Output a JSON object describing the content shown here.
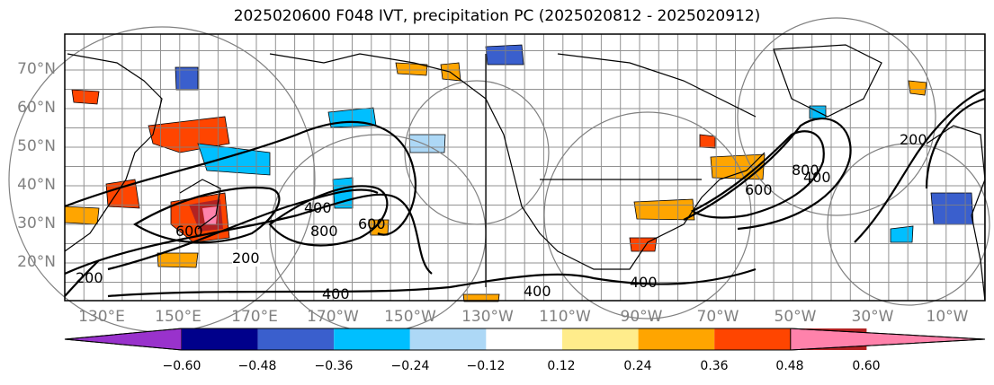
{
  "title": "2025020600 F048 IVT, precipitation PC (2025020812 - 2025020912)",
  "lat_labels": [
    "70°N",
    "60°N",
    "50°N",
    "40°N",
    "30°N",
    "20°N"
  ],
  "lon_labels": [
    "130°E",
    "150°E",
    "170°E",
    "170°W",
    "150°W",
    "130°W",
    "110°W",
    "90°W",
    "70°W",
    "50°W",
    "30°W",
    "10°W"
  ],
  "contour_labels": [
    "200",
    "400",
    "600",
    "800",
    "400",
    "600",
    "200",
    "400",
    "600",
    "800",
    "400",
    "200",
    "400"
  ],
  "colorbar": {
    "ticks": [
      "−0.60",
      "−0.48",
      "−0.36",
      "−0.24",
      "−0.12",
      "0.12",
      "0.24",
      "0.36",
      "0.48",
      "0.60"
    ],
    "colors": [
      "#9932CC",
      "#00008B",
      "#3A5FCD",
      "#00BFFF",
      "#ADD8F6",
      "#FFFFFF",
      "#FFEC8B",
      "#FFA500",
      "#FF4500",
      "#B22222",
      "#FF82AB"
    ]
  },
  "colors": {
    "axis_label": "#808080",
    "grid": "#808080",
    "contour": "#000000"
  }
}
